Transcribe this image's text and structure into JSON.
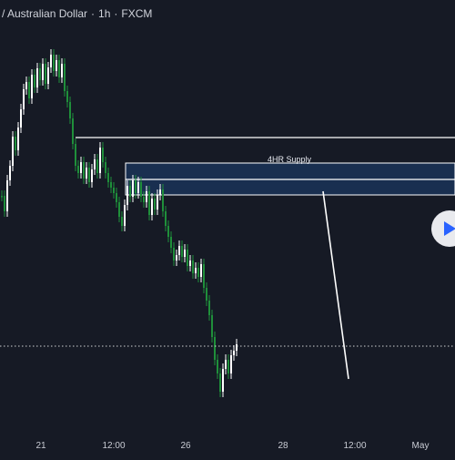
{
  "header": {
    "symbol_title": "/ Australian Dollar",
    "interval": "1h",
    "source": "FXCM"
  },
  "zone": {
    "label": "4HR Supply"
  },
  "time_axis": {
    "ticks": [
      "21",
      "12:00",
      "26",
      "28",
      "12:00",
      "May"
    ]
  },
  "controls": {
    "play_icon": "play-icon"
  },
  "colors": {
    "background": "#161a25",
    "bull_candle": "#ffffff",
    "bear_candle": "#1f8f3a",
    "zone_fill": "#1a3458",
    "lines": "#ffffff",
    "play_button": "#2962ff"
  },
  "chart_data": {
    "type": "candlestick",
    "interval": "1h",
    "x_ticks": [
      "21",
      "12:00",
      "26",
      "28",
      "12:00",
      "May"
    ],
    "annotations": [
      {
        "type": "zone",
        "label": "4HR Supply"
      },
      {
        "type": "horizontal_line",
        "style": "solid"
      },
      {
        "type": "horizontal_line",
        "style": "dotted"
      },
      {
        "type": "trend_line",
        "direction": "down"
      }
    ],
    "grid": false
  }
}
